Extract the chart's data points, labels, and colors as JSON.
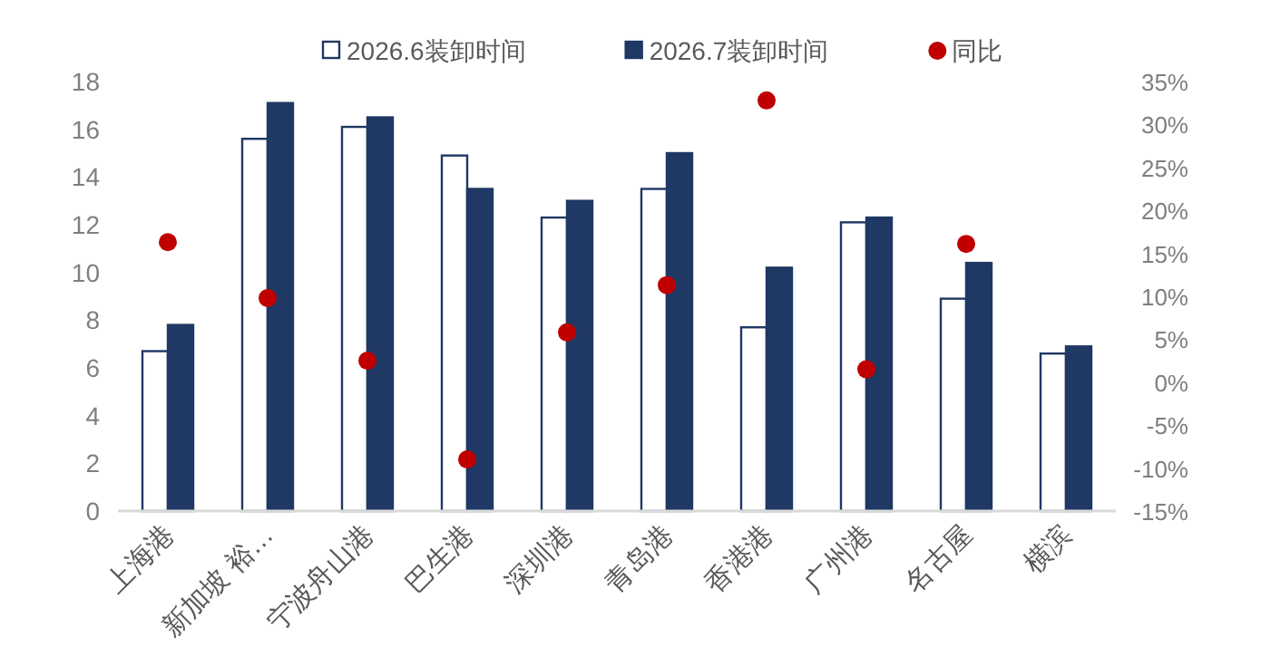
{
  "chart_data": {
    "type": "bar",
    "categories": [
      "上海港",
      "新加坡 裕…",
      "宁波舟山港",
      "巴生港",
      "深圳港",
      "青岛港",
      "香港港",
      "广州港",
      "名古屋",
      "横滨"
    ],
    "series": [
      {
        "name": "2026.6装卸时间",
        "color": "#ffffff",
        "values": [
          6.7,
          15.6,
          16.1,
          14.9,
          12.3,
          13.5,
          7.7,
          12.1,
          8.9,
          6.6
        ]
      },
      {
        "name": "2026.7装卸时间",
        "color": "#1f3864",
        "values": [
          7.8,
          17.1,
          16.5,
          13.5,
          13.0,
          15.0,
          10.2,
          12.3,
          10.4,
          6.9
        ]
      },
      {
        "name": "同比",
        "type": "scatter",
        "axis": "y2",
        "color": "#c00000",
        "values": [
          16.3,
          9.8,
          2.5,
          -9.0,
          5.8,
          11.3,
          32.8,
          1.5,
          16.1,
          null
        ]
      }
    ],
    "ylim": [
      0,
      18
    ],
    "yticks": [
      0,
      2,
      4,
      6,
      8,
      10,
      12,
      14,
      16,
      18
    ],
    "y2lim": [
      -15,
      35
    ],
    "y2ticks": [
      {
        "value": 35,
        "label": "35%"
      },
      {
        "value": 30,
        "label": "30%"
      },
      {
        "value": 25,
        "label": "25%"
      },
      {
        "value": 20,
        "label": "20%"
      },
      {
        "value": 15,
        "label": "15%"
      },
      {
        "value": 10,
        "label": "10%"
      },
      {
        "value": 5,
        "label": "5%"
      },
      {
        "value": 0,
        "label": "0%"
      },
      {
        "value": -5,
        "label": "-5%"
      },
      {
        "value": -10,
        "label": "-10%"
      },
      {
        "value": -15,
        "label": "-15%"
      }
    ],
    "legend": "top",
    "marker": "circle",
    "grid": false
  }
}
